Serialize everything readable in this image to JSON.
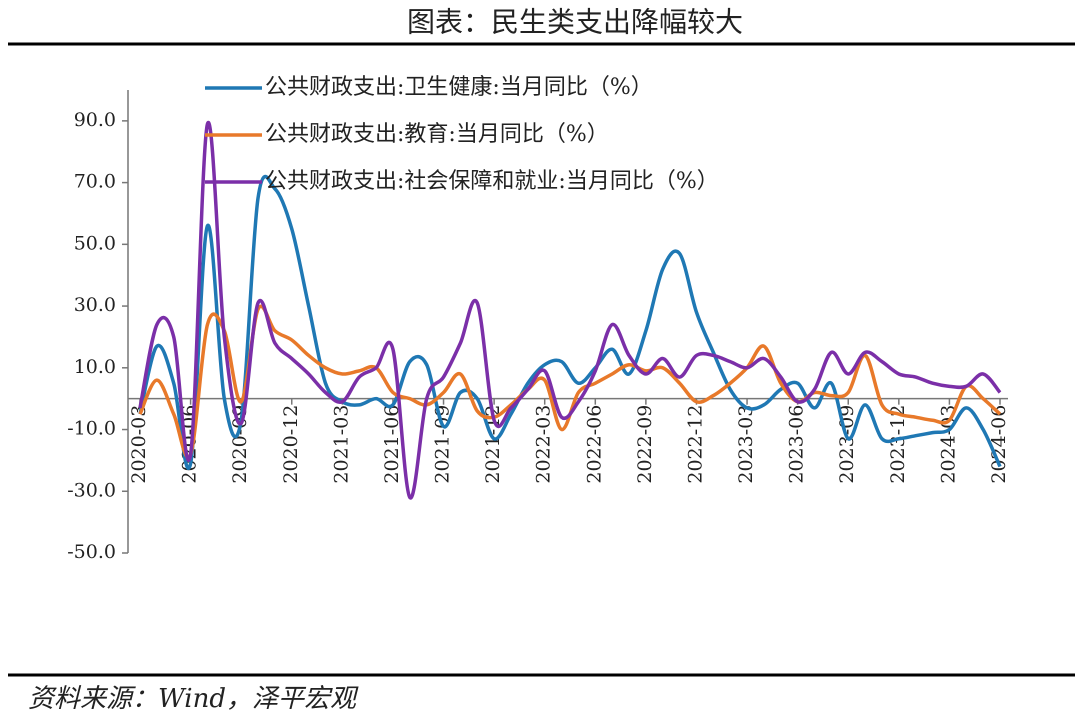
{
  "chart_data": {
    "type": "line",
    "title": "图表：民生类支出降幅较大",
    "source": "资料来源：Wind，泽平宏观",
    "categories": [
      "2020-03",
      null,
      null,
      "2020-06",
      null,
      null,
      "2020-09",
      null,
      null,
      "2020-12",
      null,
      null,
      "2021-03",
      null,
      null,
      "2021-06",
      null,
      null,
      "2021-09",
      null,
      null,
      "2021-12",
      null,
      null,
      "2022-03",
      null,
      null,
      "2022-06",
      null,
      null,
      "2022-09",
      null,
      null,
      "2022-12",
      null,
      null,
      "2023-03",
      null,
      null,
      "2023-06",
      null,
      null,
      "2023-09",
      null,
      null,
      "2023-12",
      null,
      null,
      "2024-03",
      null,
      null,
      "2024-06"
    ],
    "series": [
      {
        "name": "公共财政支出:卫生健康:当月同比（%）",
        "color": "#1f78b4",
        "values": [
          -5,
          17,
          5,
          -21,
          56,
          0,
          -7,
          65,
          68,
          55,
          30,
          5,
          -1,
          -2,
          0,
          -2,
          12,
          11,
          -9,
          2,
          0,
          -13,
          -5,
          5,
          11,
          12,
          5,
          10,
          16,
          8,
          22,
          42,
          47,
          28,
          15,
          3,
          -3,
          -2,
          3,
          5,
          -3,
          5,
          -13,
          -2,
          -13,
          -13,
          -12,
          -11,
          -10,
          -3,
          -10,
          -22
        ]
      },
      {
        "name": "公共财政支出:教育:当月同比（%）",
        "color": "#e8792a",
        "values": [
          -5,
          6,
          -5,
          -18,
          24,
          22,
          -1,
          29,
          22,
          19,
          14,
          10,
          8,
          9,
          10,
          2,
          0,
          -2,
          2,
          8,
          -4,
          -6,
          -2,
          3,
          6,
          -10,
          2,
          5,
          8,
          11,
          9,
          10,
          5,
          -1,
          1,
          5,
          10,
          17,
          5,
          -1,
          2,
          1,
          2,
          14,
          -2,
          -5,
          -6,
          -7,
          -7,
          4,
          0,
          -5
        ]
      },
      {
        "name": "公共财政支出:社会保障和就业:当月同比（%）",
        "color": "#7b2fa8",
        "values": [
          -3,
          24,
          20,
          -18,
          89,
          20,
          -8,
          31,
          18,
          13,
          8,
          2,
          -1,
          7,
          10,
          16,
          -32,
          0,
          7,
          18,
          31,
          -7,
          -3,
          3,
          9,
          -6,
          -1,
          9,
          24,
          14,
          8,
          13,
          7,
          14,
          14,
          12,
          10,
          13,
          7,
          -1,
          3,
          15,
          8,
          15,
          12,
          8,
          7,
          5,
          4,
          4,
          8,
          2
        ]
      }
    ],
    "ylim": [
      -50,
      100
    ],
    "yticks": [
      {
        "value": -50,
        "label": "-50.0"
      },
      {
        "value": -30,
        "label": "-30.0"
      },
      {
        "value": -10,
        "label": "-10.0"
      },
      {
        "value": 10,
        "label": "10.0"
      },
      {
        "value": 30,
        "label": "30.0"
      },
      {
        "value": 50,
        "label": "50.0"
      },
      {
        "value": 70,
        "label": "70.0"
      },
      {
        "value": 90,
        "label": "90.0"
      }
    ],
    "grid": false
  }
}
